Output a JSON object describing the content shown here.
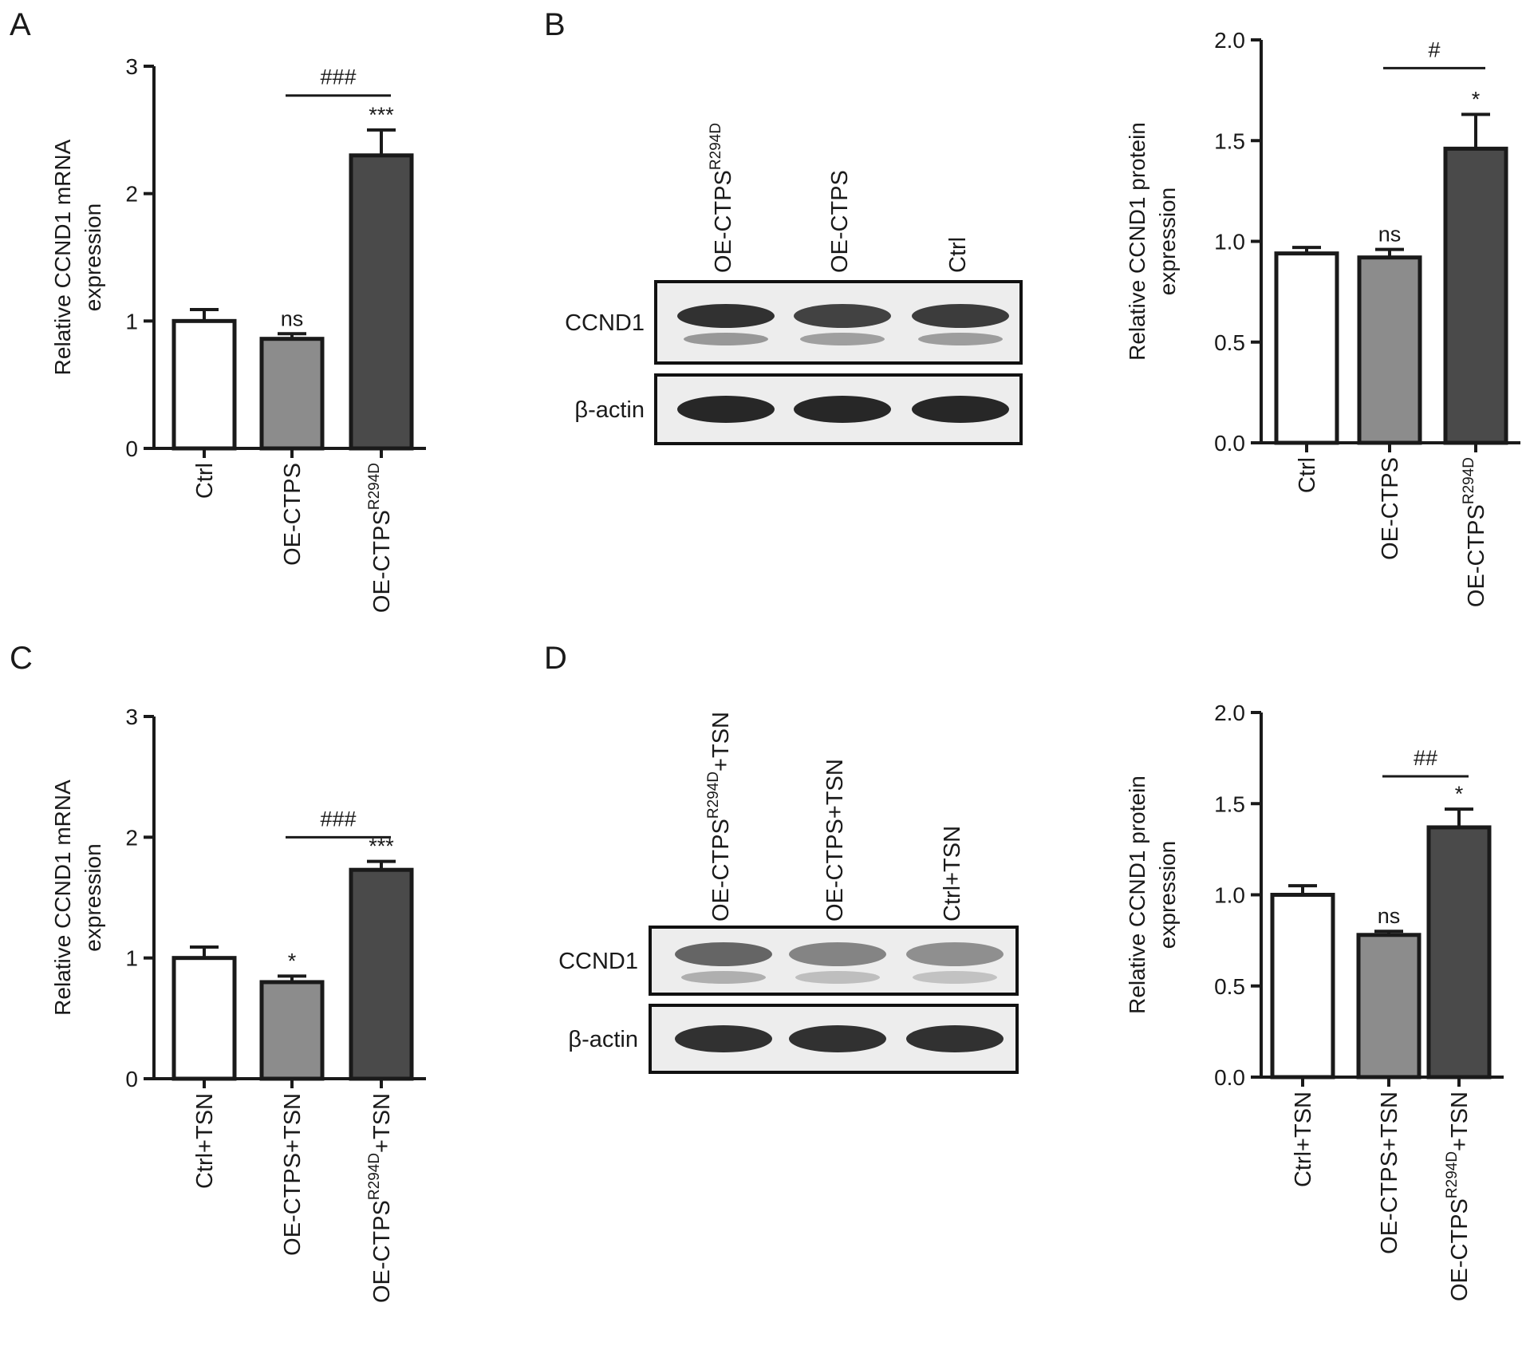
{
  "colors": {
    "bar_ctrl": "#ffffff",
    "bar_oe_ctps": "#8c8c8c",
    "bar_oe_mutant": "#4a4a4a",
    "axis": "#1a1a1a",
    "blot_band": "#1c1c1c",
    "blot_bg": "#ededed"
  },
  "blots": [
    {
      "panel": "B",
      "lanes": [
        {
          "base": "OE-CTPS",
          "sup": "R294D",
          "suffix": ""
        },
        {
          "base": "OE-CTPS",
          "sup": "",
          "suffix": ""
        },
        {
          "base": "Ctrl",
          "sup": "",
          "suffix": ""
        }
      ],
      "rows": [
        {
          "label": "CCND1",
          "band_intensity": [
            0.9,
            0.82,
            0.85
          ]
        },
        {
          "label": "β-actin",
          "band_intensity": [
            0.95,
            0.95,
            0.95
          ]
        }
      ]
    },
    {
      "panel": "D",
      "lanes": [
        {
          "base": "OE-CTPS",
          "sup": "R294D",
          "suffix": "+TSN"
        },
        {
          "base": "OE-CTPS+TSN",
          "sup": "",
          "suffix": ""
        },
        {
          "base": "Ctrl+TSN",
          "sup": "",
          "suffix": ""
        }
      ],
      "rows": [
        {
          "label": "CCND1",
          "band_intensity": [
            0.65,
            0.5,
            0.45
          ]
        },
        {
          "label": "β-actin",
          "band_intensity": [
            0.9,
            0.9,
            0.9
          ]
        }
      ]
    }
  ],
  "chart_data": [
    {
      "panel": "A",
      "type": "bar",
      "ylabel": [
        "Relative CCND1 mRNA",
        "expression"
      ],
      "ylim": [
        0,
        3
      ],
      "yticks": [
        0,
        1,
        2,
        3
      ],
      "ytick_labels": [
        "0",
        "1",
        "2",
        "3"
      ],
      "categories": [
        {
          "base": "Ctrl",
          "sup": "",
          "suffix": ""
        },
        {
          "base": "OE-CTPS",
          "sup": "",
          "suffix": ""
        },
        {
          "base": "OE-CTPS",
          "sup": "R294D",
          "suffix": ""
        }
      ],
      "values": [
        1.0,
        0.86,
        2.3
      ],
      "errors": [
        0.09,
        0.04,
        0.2
      ],
      "markers": [
        "",
        "ns",
        "***"
      ],
      "bracket": {
        "from": 1,
        "to": 2,
        "label": "###",
        "y": 2.77
      }
    },
    {
      "panel": "B",
      "type": "bar",
      "ylabel": [
        "Relative CCND1 protein",
        "expression"
      ],
      "ylim": [
        0,
        2
      ],
      "yticks": [
        0,
        0.5,
        1,
        1.5,
        2
      ],
      "ytick_labels": [
        "0.0",
        "0.5",
        "1.0",
        "1.5",
        "2.0"
      ],
      "categories": [
        {
          "base": "Ctrl",
          "sup": "",
          "suffix": ""
        },
        {
          "base": "OE-CTPS",
          "sup": "",
          "suffix": ""
        },
        {
          "base": "OE-CTPS",
          "sup": "R294D",
          "suffix": ""
        }
      ],
      "values": [
        0.94,
        0.92,
        1.46
      ],
      "errors": [
        0.03,
        0.04,
        0.17
      ],
      "markers": [
        "",
        "ns",
        "*"
      ],
      "bracket": {
        "from": 1,
        "to": 2,
        "label": "#",
        "y": 1.86
      }
    },
    {
      "panel": "C",
      "type": "bar",
      "ylabel": [
        "Relative CCND1 mRNA",
        "expression"
      ],
      "ylim": [
        0,
        3
      ],
      "yticks": [
        0,
        1,
        2,
        3
      ],
      "ytick_labels": [
        "0",
        "1",
        "2",
        "3"
      ],
      "categories": [
        {
          "base": "Ctrl+TSN",
          "sup": "",
          "suffix": ""
        },
        {
          "base": "OE-CTPS+TSN",
          "sup": "",
          "suffix": ""
        },
        {
          "base": "OE-CTPS",
          "sup": "R294D",
          "suffix": "+TSN"
        }
      ],
      "values": [
        1.0,
        0.8,
        1.73
      ],
      "errors": [
        0.09,
        0.05,
        0.07
      ],
      "markers": [
        "",
        "*",
        "***"
      ],
      "bracket": {
        "from": 1,
        "to": 2,
        "label": "###",
        "y": 2.0
      }
    },
    {
      "panel": "D",
      "type": "bar",
      "ylabel": [
        "Relative CCND1 protein",
        "expression"
      ],
      "ylim": [
        0,
        2
      ],
      "yticks": [
        0,
        0.5,
        1,
        1.5,
        2
      ],
      "ytick_labels": [
        "0.0",
        "0.5",
        "1.0",
        "1.5",
        "2.0"
      ],
      "categories": [
        {
          "base": "Ctrl+TSN",
          "sup": "",
          "suffix": ""
        },
        {
          "base": "OE-CTPS+TSN",
          "sup": "",
          "suffix": ""
        },
        {
          "base": "OE-CTPS",
          "sup": "R294D",
          "suffix": "+TSN"
        }
      ],
      "values": [
        1.0,
        0.78,
        1.37
      ],
      "errors": [
        0.05,
        0.02,
        0.1
      ],
      "markers": [
        "",
        "ns",
        "*"
      ],
      "bracket": {
        "from": 1,
        "to": 2,
        "label": "##",
        "y": 1.65
      }
    }
  ]
}
